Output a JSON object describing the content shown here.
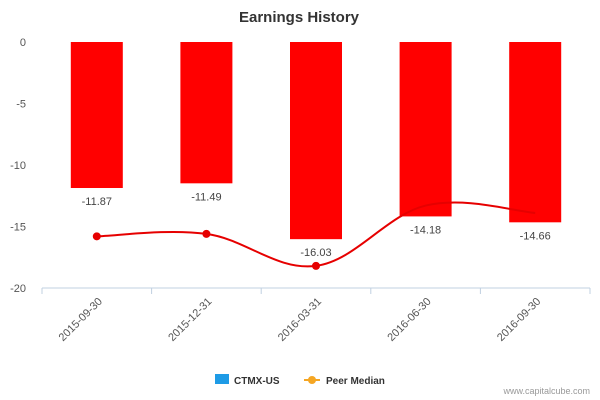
{
  "chart_data": {
    "type": "bar",
    "title": "Earnings History",
    "categories": [
      "2015-09-30",
      "2015-12-31",
      "2016-03-31",
      "2016-06-30",
      "2016-09-30"
    ],
    "series": [
      {
        "name": "CTMX-US",
        "type": "bar",
        "values": [
          -11.87,
          -11.49,
          -16.03,
          -14.18,
          -14.66
        ],
        "color": "#ff0000",
        "data_labels": [
          "-11.87",
          "-11.49",
          "-16.03",
          "-14.18",
          "-14.66"
        ]
      },
      {
        "name": "Peer Median",
        "type": "line",
        "values": [
          -15.8,
          -15.6,
          -18.2,
          -13.3,
          -13.9
        ],
        "color": "#e60000",
        "marker": "circle"
      }
    ],
    "ylim": [
      -20,
      0
    ],
    "yticks": [
      0,
      -5,
      -10,
      -15,
      -20
    ],
    "ytick_labels": [
      "0",
      "-5",
      "-10",
      "-15",
      "-20"
    ],
    "grid": false,
    "legend_position": "bottom-center",
    "legend": [
      {
        "label": "CTMX-US",
        "color": "#1e9be6",
        "symbol": "square"
      },
      {
        "label": "Peer Median",
        "color": "#f5a623",
        "symbol": "line-dot"
      }
    ]
  },
  "credit": "www.capitalcube.com"
}
